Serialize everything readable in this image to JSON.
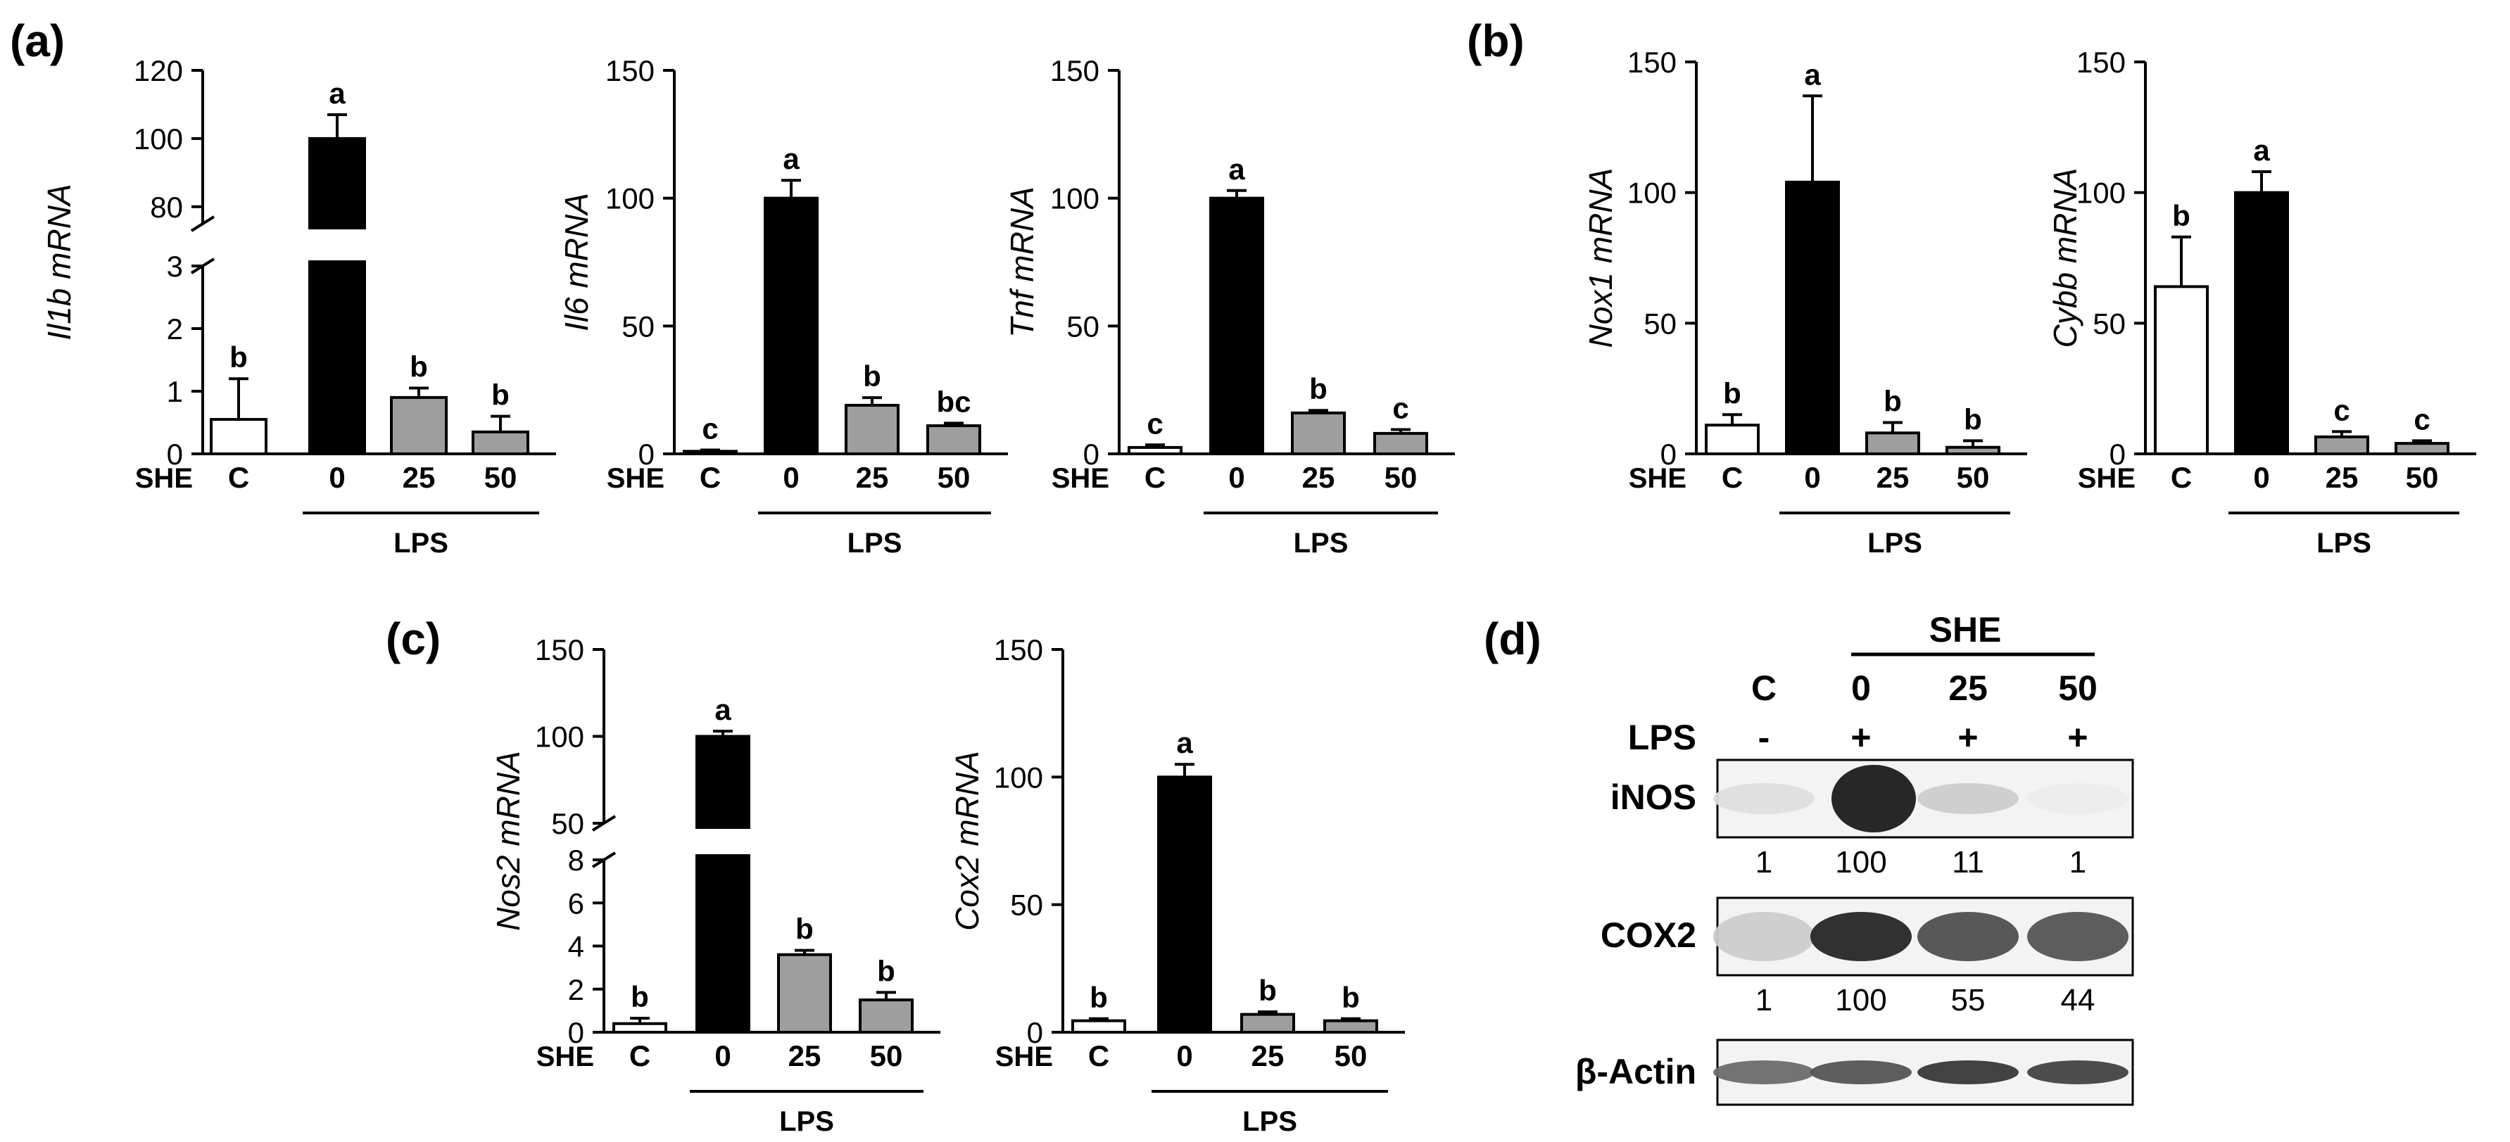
{
  "panels": {
    "a": "(a)",
    "b": "(b)",
    "c": "(c)",
    "d": "(d)"
  },
  "chart_data": [
    {
      "type": "bar",
      "id": "il1b",
      "ylabel": "Il1b mRNA",
      "broken_axis": true,
      "lower_ticks": [
        "0",
        "1",
        "2",
        "3"
      ],
      "upper_ticks": [
        "80",
        "100",
        "120"
      ],
      "lower_range": [
        0,
        3
      ],
      "upper_range": [
        75,
        120
      ],
      "categories": [
        "C",
        "0",
        "25",
        "50"
      ],
      "values": [
        0.55,
        100,
        0.9,
        0.35
      ],
      "errors": [
        0.65,
        7,
        0.15,
        0.25
      ],
      "letters": [
        "b",
        "a",
        "b",
        "b"
      ],
      "fills": [
        "#ffffff",
        "#000000",
        "#9e9e9e",
        "#9e9e9e"
      ],
      "treatment_label": "SHE",
      "group_label": "LPS"
    },
    {
      "type": "bar",
      "id": "il6",
      "ylabel": "Il6 mRNA",
      "ylim": [
        0,
        150
      ],
      "yticks": [
        0,
        50,
        100,
        150
      ],
      "categories": [
        "C",
        "0",
        "25",
        "50"
      ],
      "values": [
        1,
        100,
        19,
        11
      ],
      "errors": [
        0.5,
        7,
        3,
        1
      ],
      "letters": [
        "c",
        "a",
        "b",
        "bc"
      ],
      "fills": [
        "#ffffff",
        "#000000",
        "#9e9e9e",
        "#9e9e9e"
      ],
      "treatment_label": "SHE",
      "group_label": "LPS"
    },
    {
      "type": "bar",
      "id": "tnf",
      "ylabel": "Tnf mRNA",
      "ylim": [
        0,
        150
      ],
      "yticks": [
        0,
        50,
        100,
        150
      ],
      "categories": [
        "C",
        "0",
        "25",
        "50"
      ],
      "values": [
        2.5,
        100,
        16,
        8
      ],
      "errors": [
        1,
        3,
        1,
        1.5
      ],
      "letters": [
        "c",
        "a",
        "b",
        "c"
      ],
      "fills": [
        "#ffffff",
        "#000000",
        "#9e9e9e",
        "#9e9e9e"
      ],
      "treatment_label": "SHE",
      "group_label": "LPS"
    },
    {
      "type": "bar",
      "id": "nox1",
      "ylabel": "Nox1 mRNA",
      "ylim": [
        0,
        150
      ],
      "yticks": [
        0,
        50,
        100,
        150
      ],
      "categories": [
        "C",
        "0",
        "25",
        "50"
      ],
      "values": [
        11,
        104,
        8,
        2.5
      ],
      "errors": [
        4,
        33,
        4,
        2.5
      ],
      "letters": [
        "b",
        "a",
        "b",
        "b"
      ],
      "fills": [
        "#ffffff",
        "#000000",
        "#9e9e9e",
        "#9e9e9e"
      ],
      "treatment_label": "SHE",
      "group_label": "LPS"
    },
    {
      "type": "bar",
      "id": "cybb",
      "ylabel": "Cybb mRNA",
      "ylim": [
        0,
        150
      ],
      "yticks": [
        0,
        50,
        100,
        150
      ],
      "categories": [
        "C",
        "0",
        "25",
        "50"
      ],
      "values": [
        64,
        100,
        6.5,
        4
      ],
      "errors": [
        19,
        8,
        2,
        1
      ],
      "letters": [
        "b",
        "a",
        "c",
        "c"
      ],
      "fills": [
        "#ffffff",
        "#000000",
        "#9e9e9e",
        "#9e9e9e"
      ],
      "treatment_label": "SHE",
      "group_label": "LPS"
    },
    {
      "type": "bar",
      "id": "nos2",
      "ylabel": "Nos2 mRNA",
      "broken_axis": true,
      "lower_ticks": [
        "0",
        "2",
        "4",
        "6",
        "8"
      ],
      "upper_ticks": [
        "50",
        "100",
        "150"
      ],
      "lower_range": [
        0,
        8
      ],
      "upper_range": [
        50,
        150
      ],
      "categories": [
        "C",
        "0",
        "25",
        "50"
      ],
      "values": [
        0.4,
        100,
        3.6,
        1.5
      ],
      "errors": [
        0.25,
        3,
        0.2,
        0.35
      ],
      "letters": [
        "b",
        "a",
        "b",
        "b"
      ],
      "fills": [
        "#ffffff",
        "#000000",
        "#9e9e9e",
        "#9e9e9e"
      ],
      "treatment_label": "SHE",
      "group_label": "LPS"
    },
    {
      "type": "bar",
      "id": "cox2",
      "ylabel": "Cox2 mRNA",
      "ylim": [
        0,
        150
      ],
      "yticks": [
        0,
        50,
        100,
        150
      ],
      "categories": [
        "C",
        "0",
        "25",
        "50"
      ],
      "values": [
        4.5,
        100,
        7,
        4.5
      ],
      "errors": [
        0.8,
        5,
        1,
        0.8
      ],
      "letters": [
        "b",
        "a",
        "b",
        "b"
      ],
      "fills": [
        "#ffffff",
        "#000000",
        "#9e9e9e",
        "#9e9e9e"
      ],
      "treatment_label": "SHE",
      "group_label": "LPS"
    }
  ],
  "western": {
    "she_label": "SHE",
    "lps_label": "LPS",
    "lanes": [
      "C",
      "0",
      "25",
      "50"
    ],
    "lps_marks": [
      "-",
      "+",
      "+",
      "+"
    ],
    "bands": [
      {
        "name": "iNOS",
        "quant": [
          "1",
          "100",
          "11",
          "1"
        ],
        "intensity": [
          0.1,
          0.95,
          0.18,
          0.04
        ]
      },
      {
        "name": "COX2",
        "quant": [
          "1",
          "100",
          "55",
          "44"
        ],
        "intensity": [
          0.18,
          0.9,
          0.72,
          0.7
        ]
      },
      {
        "name": "β-Actin",
        "quant": [],
        "intensity": [
          0.6,
          0.7,
          0.82,
          0.78
        ]
      }
    ]
  }
}
